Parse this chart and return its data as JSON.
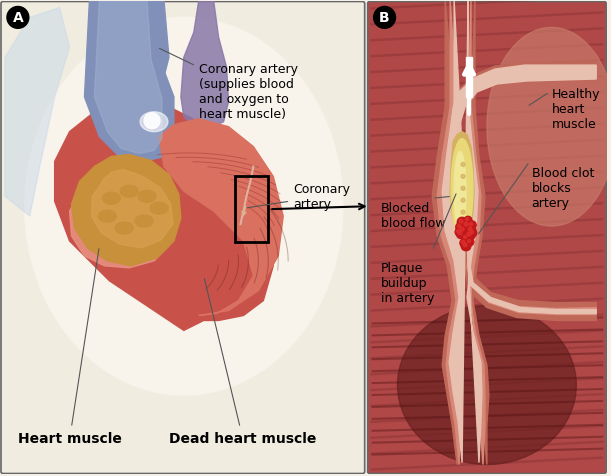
{
  "bg_color": "#f5f0e8",
  "labels": {
    "coronary_artery_long": "Coronary artery\n(supplies blood\nand oxygen to\nheart muscle)",
    "coronary_artery": "Coronary\nartery",
    "heart_muscle": "Heart muscle",
    "dead_heart_muscle": "Dead heart muscle",
    "healthy_heart_muscle": "Healthy\nheart\nmuscle",
    "blood_clot": "Blood clot\nblocks\nartery",
    "blocked_blood_flow": "Blocked\nblood flow",
    "plaque_buildup": "Plaque\nbuildup\nin artery"
  },
  "colors": {
    "heart_main": "#c8524a",
    "heart_light": "#d97060",
    "heart_highlight": "#e89080",
    "heart_dark": "#8a2828",
    "heart_mid": "#b84040",
    "aorta_blue": "#8090b8",
    "aorta_light": "#a0b0d0",
    "pulm_purple": "#8878a8",
    "dead_tissue_main": "#c8903a",
    "dead_tissue_light": "#d8a050",
    "dead_texture": "#b07828",
    "muscle_dark_bg": "#8a3030",
    "muscle_mid": "#b04848",
    "muscle_light": "#c86858",
    "muscle_pink_upper": "#c87868",
    "artery_outer": "#c06858",
    "artery_inner_wall": "#d88878",
    "artery_lumen": "#e8c0b0",
    "plaque_yellow": "#e8d878",
    "plaque_light": "#f0e898",
    "plaque_tan": "#d4b060",
    "clot_red": "#c01818",
    "clot_bright": "#e03030",
    "panel_bg_a": "#f0ede0",
    "panel_bg_b_top": "#c87868",
    "white_arrow": "#ffffff",
    "label_line": "#555555"
  },
  "font_size": 9
}
